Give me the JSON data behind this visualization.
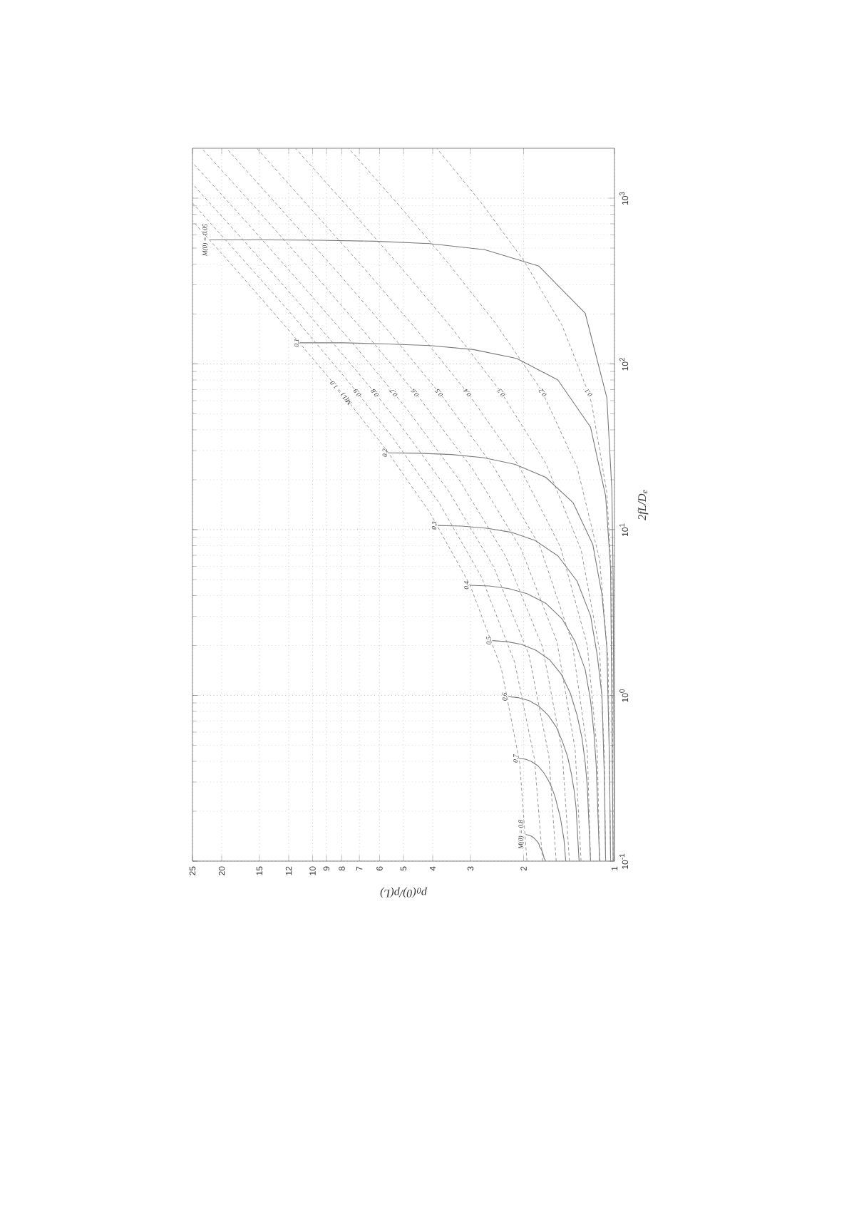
{
  "chart_data": {
    "type": "line",
    "xlabel": "p$_{0}$(0)/p(L)",
    "ylabel": "2fL/D$_{e}$",
    "log": "xy",
    "xlim": [
      25,
      1
    ],
    "ylim": [
      0.1,
      2000
    ],
    "xticks": [
      25,
      20,
      15,
      12,
      10,
      9,
      8,
      7,
      6,
      5,
      4,
      3,
      2,
      1
    ],
    "yticks": [
      {
        "value": 0.1,
        "label": "10$^{-1}$"
      },
      {
        "value": 1,
        "label": "10$^{0}$"
      },
      {
        "value": 10,
        "label": "10$^{1}$"
      },
      {
        "value": 100,
        "label": "10$^{2}$"
      },
      {
        "value": 1000,
        "label": "10$^{3}$"
      }
    ],
    "grid": true,
    "series": [
      {
        "name": "M(0) = 0.05",
        "color": "#7a7a7a",
        "line_style": "solid",
        "values": [
          0.1,
          4.79,
          17.4,
          62.5,
          202,
          389,
          489,
          532,
          550,
          557,
          560,
          560
        ],
        "x": [
          1,
          1.01,
          1.02,
          1.06,
          1.25,
          1.78,
          2.69,
          4.09,
          6.23,
          9.48,
          14.4,
          21.9
        ]
      },
      {
        "name": "0.1",
        "color": "#7a7a7a",
        "line_style": "solid",
        "values": [
          0.1,
          5.83,
          16,
          41.5,
          80,
          108,
          122,
          129,
          132,
          134,
          134
        ],
        "x": [
          1.01,
          1.03,
          1.07,
          1.2,
          1.54,
          2.11,
          2.93,
          4.08,
          5.68,
          7.91,
          11
        ]
      },
      {
        "name": "0.2",
        "color": "#7a7a7a",
        "line_style": "solid",
        "values": [
          0.1,
          0.44,
          1.94,
          4.05,
          8.15,
          14.5,
          20.7,
          24.8,
          27.2,
          28.4,
          28.9,
          29.1
        ],
        "x": [
          1.03,
          1.04,
          1.06,
          1.1,
          1.18,
          1.37,
          1.69,
          2.14,
          2.72,
          3.46,
          4.41,
          5.61
        ]
      },
      {
        "name": "0.3",
        "color": "#7a7a7a",
        "line_style": "solid",
        "values": [
          0.1,
          0.314,
          0.558,
          0.993,
          1.74,
          3.02,
          4.89,
          6.95,
          8.59,
          9.65,
          10.2,
          10.5,
          10.6
        ],
        "x": [
          1.07,
          1.08,
          1.09,
          1.1,
          1.14,
          1.2,
          1.33,
          1.54,
          1.83,
          2.2,
          2.65,
          3.2,
          3.85
        ]
      },
      {
        "name": "0.4",
        "color": "#7a7a7a",
        "line_style": "solid",
        "values": [
          0.1,
          0.156,
          0.246,
          0.384,
          0.598,
          0.93,
          1.43,
          2.11,
          2.89,
          3.6,
          4.11,
          4.42,
          4.57,
          4.62
        ],
        "x": [
          1.12,
          1.13,
          1.14,
          1.15,
          1.17,
          1.2,
          1.25,
          1.35,
          1.49,
          1.69,
          1.95,
          2.25,
          2.6,
          3.01
        ]
      },
      {
        "name": "0.5",
        "color": "#7a7a7a",
        "line_style": "solid",
        "values": [
          0.1,
          0.141,
          0.198,
          0.279,
          0.392,
          0.548,
          0.759,
          1.03,
          1.34,
          1.64,
          1.87,
          2.03,
          2.11,
          2.14
        ],
        "x": [
          1.2,
          1.21,
          1.22,
          1.23,
          1.25,
          1.28,
          1.33,
          1.4,
          1.5,
          1.64,
          1.82,
          2.03,
          2.27,
          2.54
        ]
      },
      {
        "name": "0.6",
        "color": "#7a7a7a",
        "line_style": "solid",
        "values": [
          0.1,
          0.163,
          0.209,
          0.266,
          0.338,
          0.427,
          0.531,
          0.646,
          0.761,
          0.859,
          0.93,
          0.969,
          0.982
        ],
        "x": [
          1.31,
          1.33,
          1.34,
          1.36,
          1.39,
          1.43,
          1.49,
          1.56,
          1.66,
          1.78,
          1.92,
          2.08,
          2.25
        ]
      },
      {
        "name": "0.7",
        "color": "#7a7a7a",
        "line_style": "solid",
        "values": [
          0.1,
          0.116,
          0.135,
          0.157,
          0.182,
          0.21,
          0.241,
          0.275,
          0.31,
          0.344,
          0.375,
          0.398,
          0.412,
          0.416
        ],
        "x": [
          1.45,
          1.46,
          1.47,
          1.49,
          1.51,
          1.54,
          1.57,
          1.61,
          1.66,
          1.72,
          1.79,
          1.88,
          1.97,
          2.07
        ]
      },
      {
        "name": "M(0) = 0.8",
        "color": "#7a7a7a",
        "line_style": "solid",
        "values": [
          0.1,
          0.104,
          0.109,
          0.113,
          0.118,
          0.122,
          0.127,
          0.131,
          0.135,
          0.138,
          0.141,
          0.143,
          0.144,
          0.145
        ],
        "x": [
          1.69,
          1.71,
          1.72,
          1.73,
          1.75,
          1.77,
          1.78,
          1.8,
          1.83,
          1.85,
          1.88,
          1.91,
          1.94,
          1.97
        ]
      },
      {
        "name": "M(L) = 1.0",
        "color": "#8c8c8c",
        "line_style": "dashed",
        "values": [
          0.1,
          0.391,
          1.45,
          4.63,
          12.7,
          30.9,
          67.1,
          70.9,
          157,
          340,
          730
        ],
        "x": [
          1.95,
          2.06,
          2.37,
          3.01,
          4.09,
          5.75,
          8.03,
          8.23,
          11.9,
          17.2,
          25
        ]
      },
      {
        "name": "0.9",
        "color": "#8c8c8c",
        "line_style": "dashed",
        "values": [
          0.1,
          0.411,
          1.58,
          5.2,
          14.5,
          36.1,
          67,
          84.3,
          191,
          426,
          935
        ],
        "x": [
          1.73,
          1.84,
          2.14,
          2.76,
          3.81,
          5.44,
          7.11,
          7.88,
          11.5,
          17,
          25
        ]
      },
      {
        "name": "0.8",
        "color": "#8c8c8c",
        "line_style": "dashed",
        "values": [
          0.1,
          0.433,
          1.75,
          5.93,
          16.9,
          42.8,
          66.9,
          102,
          238,
          540,
          1220
        ],
        "x": [
          1.56,
          1.65,
          1.92,
          2.51,
          3.53,
          5.12,
          6.22,
          7.55,
          11.2,
          16.7,
          25
        ]
      },
      {
        "name": "0.7",
        "color": "#8c8c8c",
        "line_style": "dashed",
        "values": [
          0.1,
          0.457,
          1.95,
          6.88,
          20,
          52.1,
          67,
          128,
          303,
          712,
          1640
        ],
        "x": [
          1.41,
          1.49,
          1.73,
          2.29,
          3.27,
          4.82,
          5.39,
          7.23,
          10.9,
          16.5,
          25
        ]
      },
      {
        "name": "0.6",
        "color": "#8c8c8c",
        "line_style": "dashed",
        "values": [
          0.1,
          0.472,
          2.1,
          7.67,
          22.8,
          60,
          67,
          149,
          358,
          846,
          2000
        ],
        "x": [
          1.29,
          1.35,
          1.55,
          2.04,
          2.93,
          4.36,
          4.58,
          6.6,
          10,
          15.2,
          23.3
        ]
      },
      {
        "name": "0.5",
        "color": "#8c8c8c",
        "line_style": "dashed",
        "values": [
          0.1,
          0.464,
          2.07,
          7.81,
          23.6,
          62.1,
          67,
          153,
          365,
          855,
          2000
        ],
        "x": [
          1.2,
          1.23,
          1.38,
          1.76,
          2.5,
          3.68,
          3.81,
          5.53,
          8.35,
          12.7,
          19.3
        ]
      },
      {
        "name": "0.4",
        "color": "#8c8c8c",
        "line_style": "dashed",
        "values": [
          0.1,
          0.452,
          2,
          7.86,
          24.5,
          65,
          67,
          159,
          376,
          873,
          2000
        ],
        "x": [
          1.12,
          1.14,
          1.23,
          1.51,
          2.08,
          3.03,
          3.07,
          4.5,
          6.74,
          10.2,
          15.3
        ]
      },
      {
        "name": "0.3",
        "color": "#8c8c8c",
        "line_style": "dashed",
        "values": [
          0.1,
          0.433,
          1.87,
          7.56,
          25.2,
          67,
          68.6,
          168,
          392,
          888,
          2000
        ],
        "x": [
          1.07,
          1.08,
          1.12,
          1.29,
          1.69,
          2.37,
          2.39,
          3.49,
          5.16,
          7.65,
          11.4
        ]
      },
      {
        "name": "0.2",
        "color": "#8c8c8c",
        "line_style": "dashed",
        "values": [
          0.1,
          1.64,
          6.57,
          23.9,
          67,
          70.9,
          178,
          412,
          915,
          2000
        ],
        "x": [
          1.03,
          1.05,
          1.12,
          1.33,
          1.73,
          1.76,
          2.49,
          3.58,
          5.2,
          7.6
        ]
      },
      {
        "name": "0.1",
        "color": "#8c8c8c",
        "line_style": "dashed",
        "values": [
          0.1,
          4.7,
          16.8,
          57.7,
          67,
          170,
          422,
          944,
          2000
        ],
        "x": [
          1.01,
          1.02,
          1.06,
          1.19,
          1.22,
          1.49,
          2,
          2.77,
          3.88
        ]
      }
    ]
  }
}
